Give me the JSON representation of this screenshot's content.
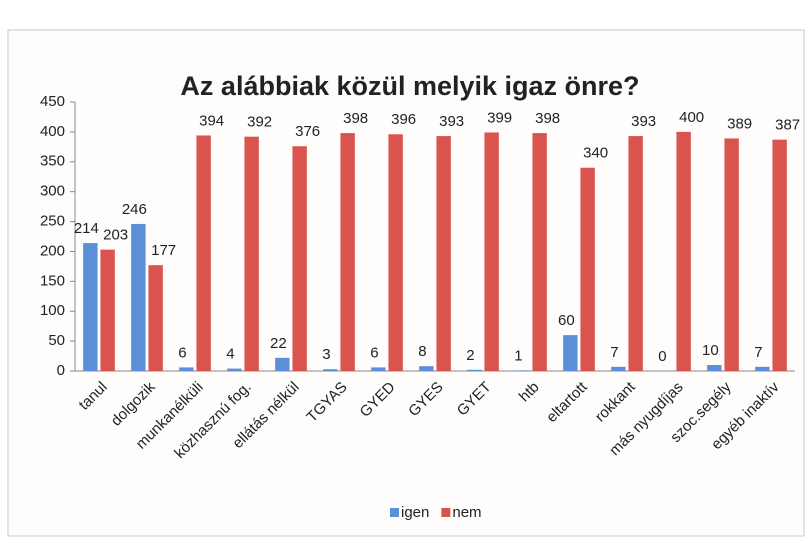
{
  "chart_data": {
    "type": "bar",
    "title": "Az alábbiak közül melyik igaz önre?",
    "categories": [
      "tanul",
      "dolgozik",
      "munkanélküli",
      "közhasznú fog.",
      "ellátás nélkül",
      "TGYAS",
      "GYED",
      "GYES",
      "GYET",
      "htb",
      "eltartott",
      "rokkant",
      "más nyugdíjas",
      "szoc.segély",
      "egyéb inaktív"
    ],
    "series": [
      {
        "name": "igen",
        "color": "#5b8fd6",
        "values": [
          214,
          246,
          6,
          4,
          22,
          3,
          6,
          8,
          2,
          1,
          60,
          7,
          0,
          10,
          7
        ]
      },
      {
        "name": "nem",
        "color": "#d9534f",
        "values": [
          203,
          177,
          394,
          392,
          376,
          398,
          396,
          393,
          399,
          398,
          340,
          393,
          400,
          389,
          387
        ]
      }
    ],
    "ylim": [
      0,
      450
    ],
    "yticks": [
      0,
      50,
      100,
      150,
      200,
      250,
      300,
      350,
      400,
      450
    ],
    "legend": "bottom"
  }
}
